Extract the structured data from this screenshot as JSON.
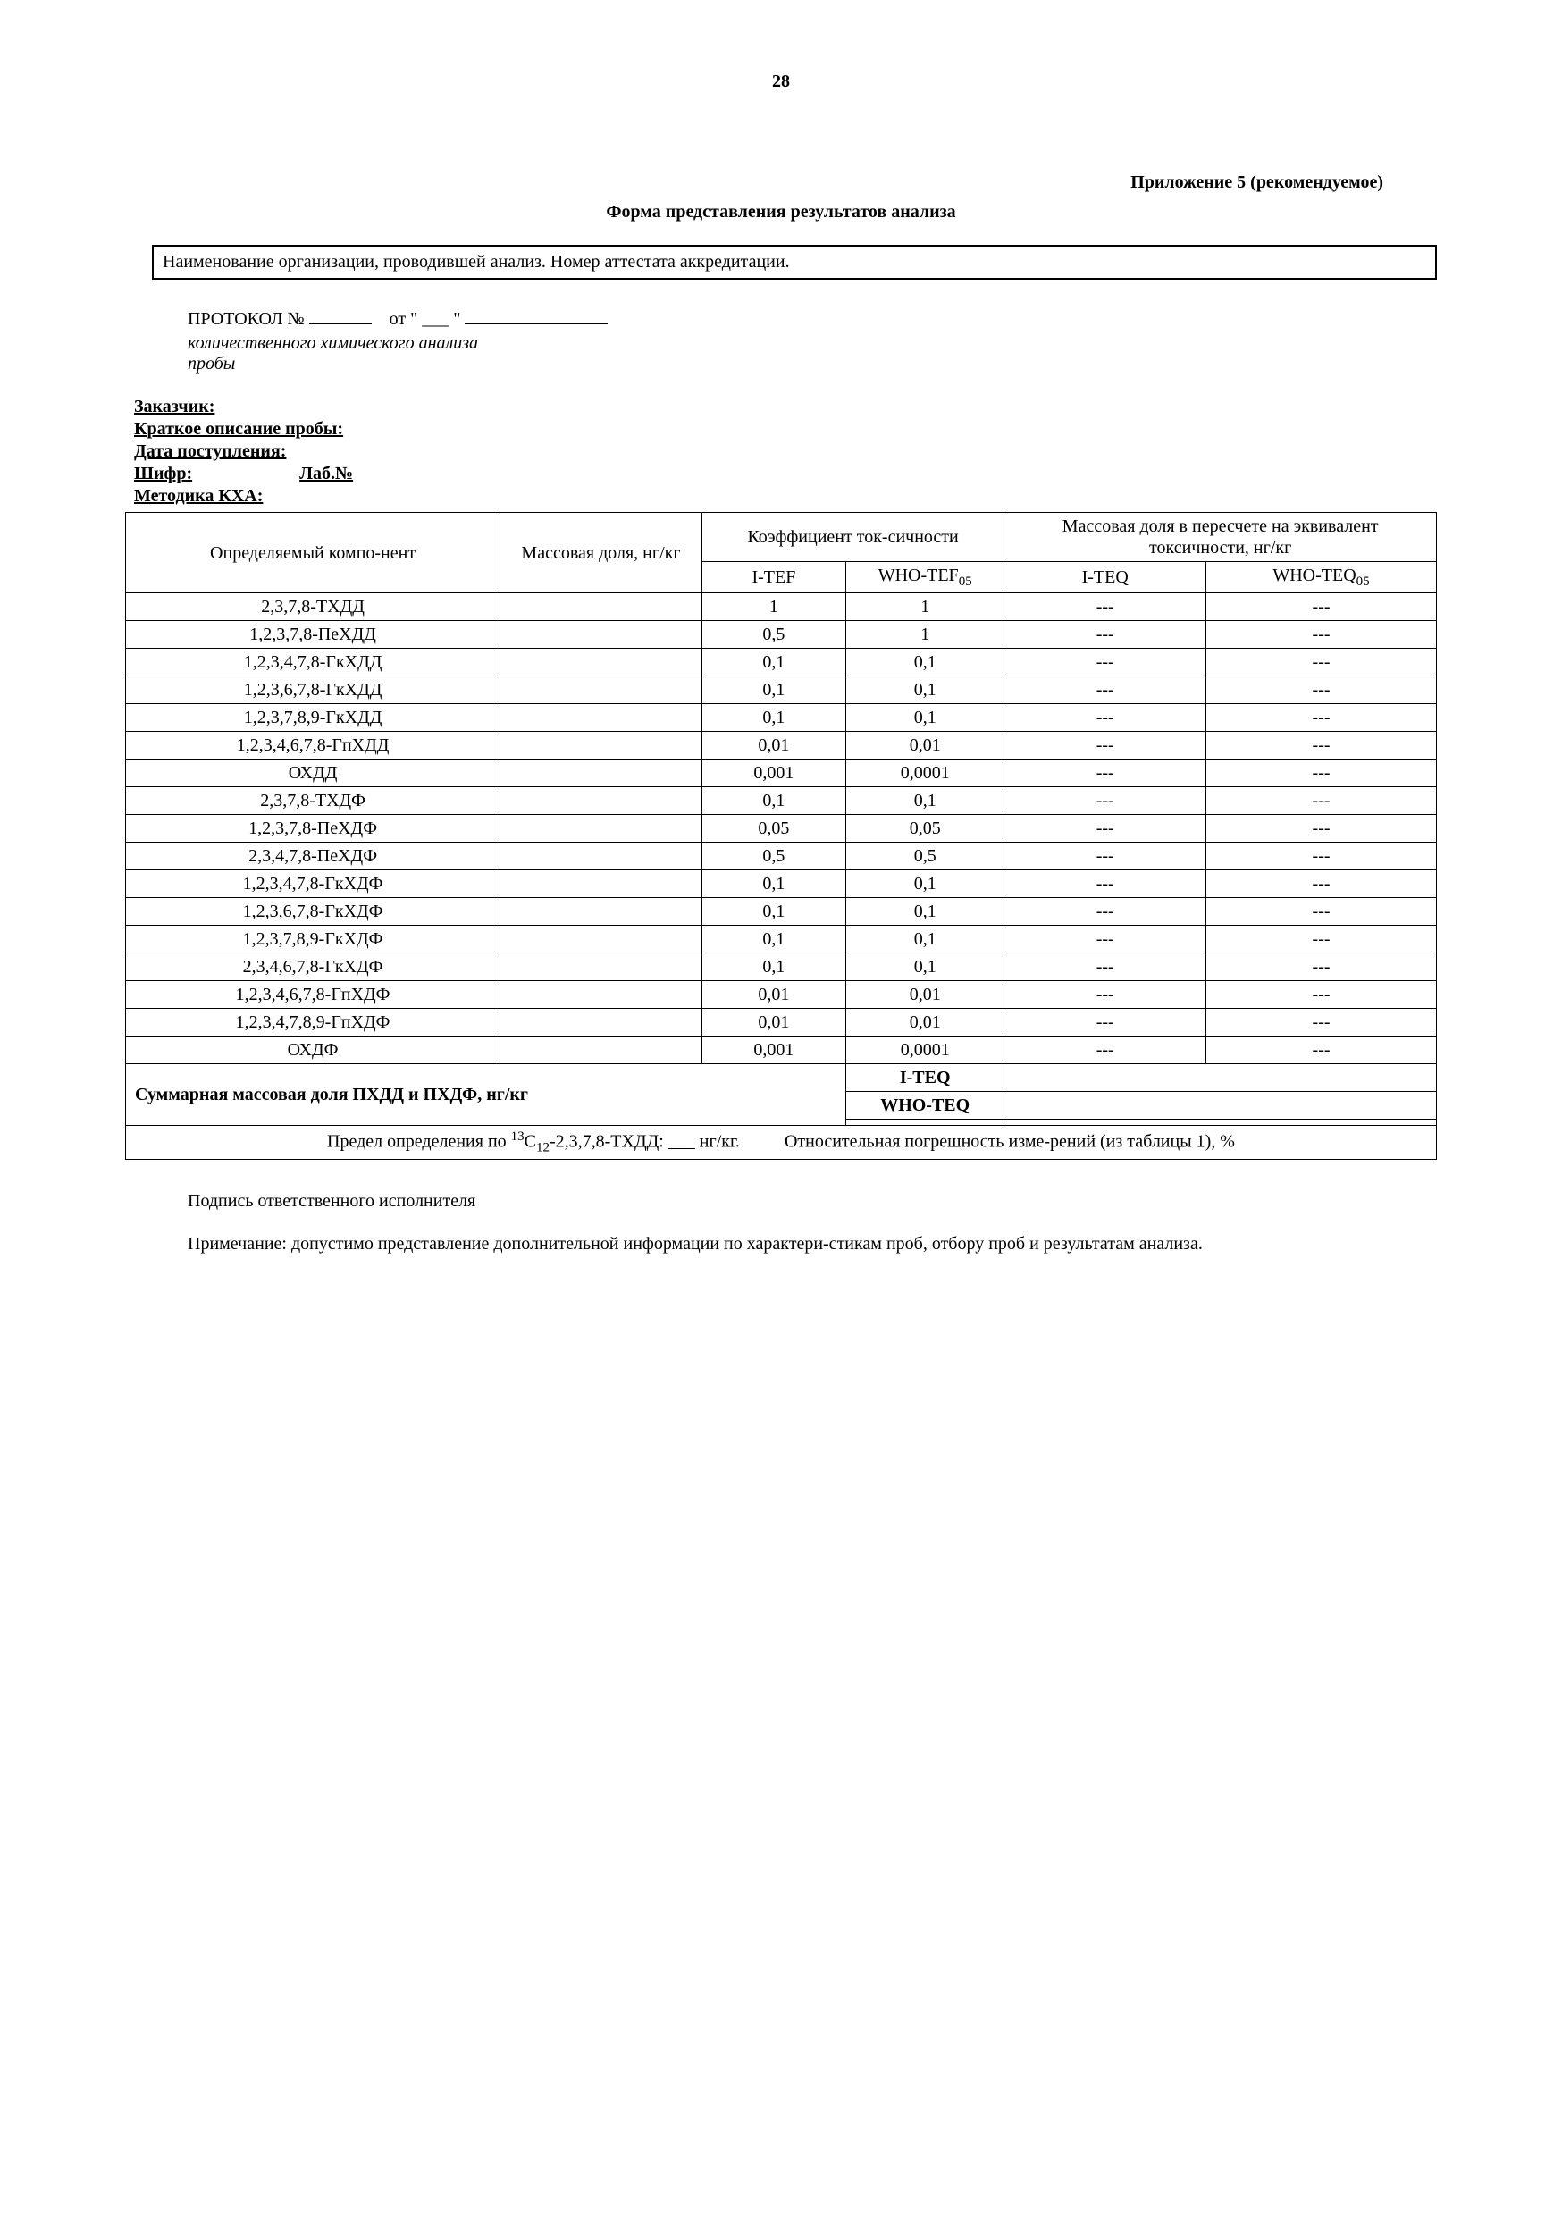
{
  "page_number": "28",
  "appendix_title": "Приложение 5 (рекомендуемое)",
  "form_title": "Форма представления результатов анализа",
  "org_box": "Наименование организации, проводившей анализ. Номер аттестата аккредитации.",
  "protocol_prefix": "ПРОТОКОЛ №",
  "protocol_from": "от \" ___ \"",
  "italic_line1": "количественного химического анализа",
  "italic_line2_prefix": "пробы",
  "meta": {
    "customer": "Заказчик:",
    "description": "Краткое описание пробы:",
    "date": "Дата поступления:",
    "cipher": "Шифр:",
    "lab_no": "Лаб.№",
    "method": "Методика КХА:"
  },
  "table": {
    "header": {
      "component": "Определяемый компо-нент",
      "mass": "Массовая доля, нг/кг",
      "toxicity_coef": "Коэффициент ток-сичности",
      "mass_equiv": "Массовая доля в пересчете на эквивалент токсичности, нг/кг",
      "itef": "I-TEF",
      "who_tef": "WHO-TEF",
      "who_tef_sub": "05",
      "iteq": "I-TEQ",
      "who_teq": "WHO-TEQ",
      "who_teq_sub": "05"
    },
    "rows": [
      {
        "name": "2,3,7,8-ТХДД",
        "itef": "1",
        "who": "1",
        "iteq": "---",
        "whoteq": "---"
      },
      {
        "name": "1,2,3,7,8-ПеХДД",
        "itef": "0,5",
        "who": "1",
        "iteq": "---",
        "whoteq": "---"
      },
      {
        "name": "1,2,3,4,7,8-ГкХДД",
        "itef": "0,1",
        "who": "0,1",
        "iteq": "---",
        "whoteq": "---"
      },
      {
        "name": "1,2,3,6,7,8-ГкХДД",
        "itef": "0,1",
        "who": "0,1",
        "iteq": "---",
        "whoteq": "---"
      },
      {
        "name": "1,2,3,7,8,9-ГкХДД",
        "itef": "0,1",
        "who": "0,1",
        "iteq": "---",
        "whoteq": "---"
      },
      {
        "name": "1,2,3,4,6,7,8-ГпХДД",
        "itef": "0,01",
        "who": "0,01",
        "iteq": "---",
        "whoteq": "---"
      },
      {
        "name": "ОХДД",
        "itef": "0,001",
        "who": "0,0001",
        "iteq": "---",
        "whoteq": "---"
      },
      {
        "name": "2,3,7,8-ТХДФ",
        "itef": "0,1",
        "who": "0,1",
        "iteq": "---",
        "whoteq": "---"
      },
      {
        "name": "1,2,3,7,8-ПеХДФ",
        "itef": "0,05",
        "who": "0,05",
        "iteq": "---",
        "whoteq": "---"
      },
      {
        "name": "2,3,4,7,8-ПеХДФ",
        "itef": "0,5",
        "who": "0,5",
        "iteq": "---",
        "whoteq": "---"
      },
      {
        "name": "1,2,3,4,7,8-ГкХДФ",
        "itef": "0,1",
        "who": "0,1",
        "iteq": "---",
        "whoteq": "---"
      },
      {
        "name": "1,2,3,6,7,8-ГкХДФ",
        "itef": "0,1",
        "who": "0,1",
        "iteq": "---",
        "whoteq": "---"
      },
      {
        "name": "1,2,3,7,8,9-ГкХДФ",
        "itef": "0,1",
        "who": "0,1",
        "iteq": "---",
        "whoteq": "---"
      },
      {
        "name": "2,3,4,6,7,8-ГкХДФ",
        "itef": "0,1",
        "who": "0,1",
        "iteq": "---",
        "whoteq": "---"
      },
      {
        "name": "1,2,3,4,6,7,8-ГпХДФ",
        "itef": "0,01",
        "who": "0,01",
        "iteq": "---",
        "whoteq": "---"
      },
      {
        "name": "1,2,3,4,7,8,9-ГпХДФ",
        "itef": "0,01",
        "who": "0,01",
        "iteq": "---",
        "whoteq": "---"
      },
      {
        "name": "ОХДФ",
        "itef": "0,001",
        "who": "0,0001",
        "iteq": "---",
        "whoteq": "---"
      }
    ],
    "summary_label": "Суммарная массовая доля ПХДД и ПХДФ, нг/кг",
    "summary_iteq_label": "I-TEQ",
    "summary_whoteq_label": "WHO-TEQ",
    "limit_prefix": "Предел определения по ",
    "limit_isotope_sup": "13",
    "limit_isotope": "C",
    "limit_isotope_sub": "12",
    "limit_suffix": "-2,3,7,8-ТХДД: ___ нг/кг.",
    "relative_error": "Относительная погрешность изме-рений  (из таблицы 1), %"
  },
  "signature": "Подпись ответственного исполнителя",
  "note": "Примечание: допустимо представление дополнительной информации по характери-стикам проб, отбору проб и результатам анализа."
}
